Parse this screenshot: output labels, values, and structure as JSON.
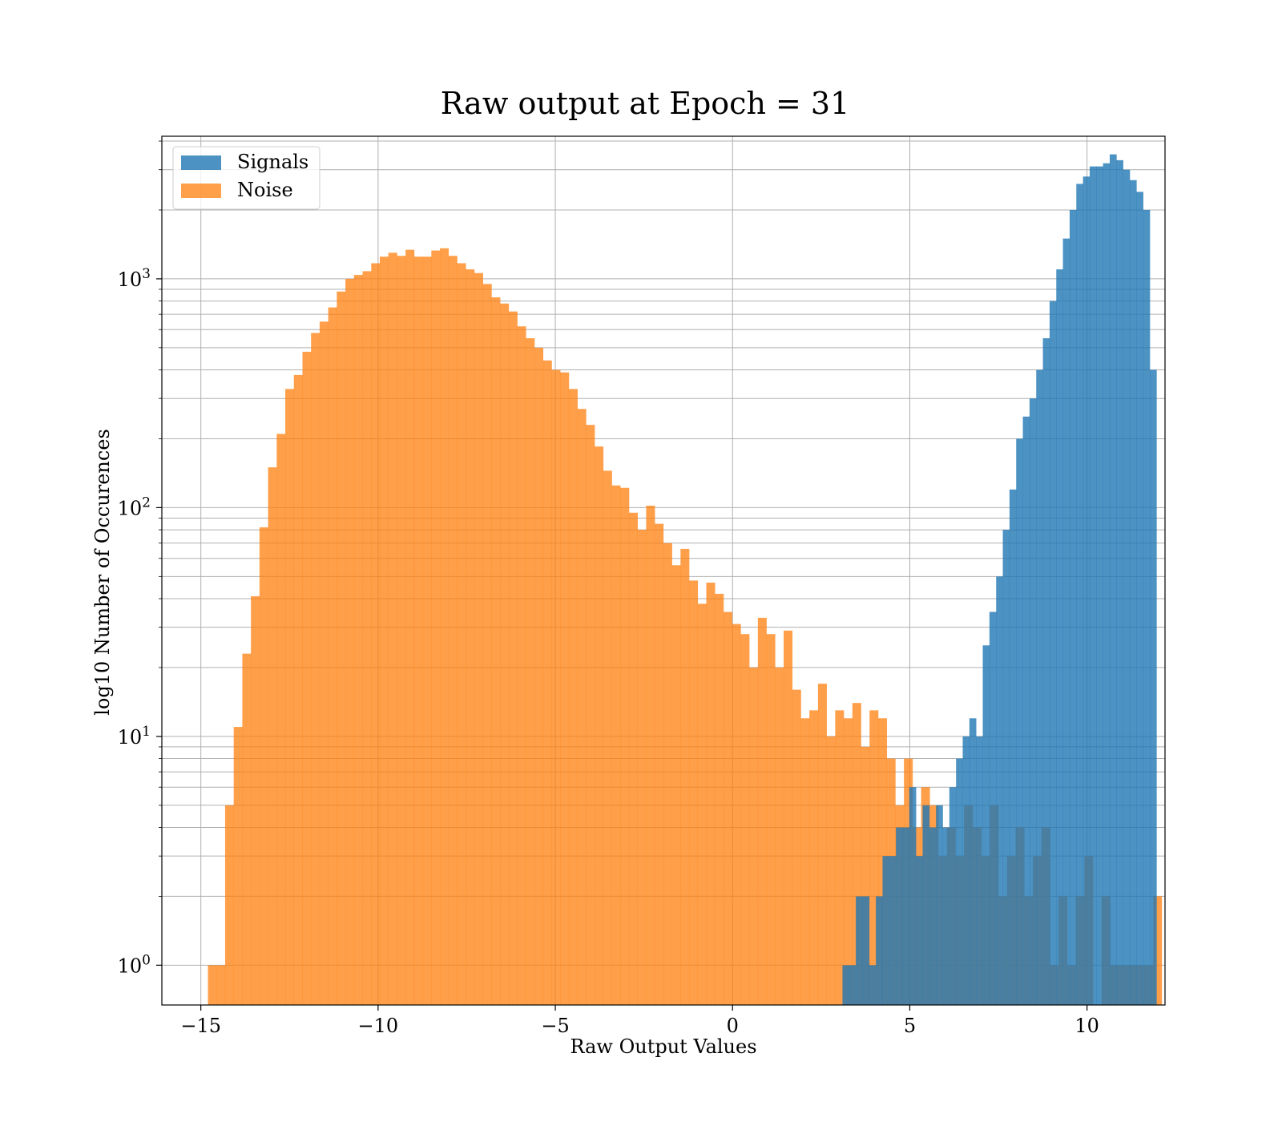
{
  "chart_data": {
    "type": "bar",
    "title": "Raw output at Epoch = 31",
    "xlabel": "Raw Output Values",
    "ylabel": "log10 Number of Occurences",
    "yscale": "log",
    "xlim": [
      -16.1,
      12.2
    ],
    "ylim": [
      0.67,
      4200
    ],
    "grid": true,
    "legend_position": "top-left",
    "x_ticks": [
      {
        "value": -15,
        "label": "−15"
      },
      {
        "value": -10,
        "label": "−10"
      },
      {
        "value": -5,
        "label": "−5"
      },
      {
        "value": 0,
        "label": "0"
      },
      {
        "value": 5,
        "label": "5"
      },
      {
        "value": 10,
        "label": "10"
      }
    ],
    "y_ticks": [
      {
        "value": 1,
        "base": "10",
        "exp": "0"
      },
      {
        "value": 10,
        "base": "10",
        "exp": "1"
      },
      {
        "value": 100,
        "base": "10",
        "exp": "2"
      },
      {
        "value": 1000,
        "base": "10",
        "exp": "3"
      }
    ],
    "series": [
      {
        "name": "Noise",
        "color": "#ff7f0e",
        "opacity": 0.75,
        "bin_start": -14.8,
        "bin_width": 0.2424,
        "counts": [
          1,
          1,
          5,
          11,
          23,
          41,
          82,
          150,
          210,
          330,
          380,
          480,
          580,
          650,
          750,
          880,
          1000,
          1040,
          1080,
          1170,
          1250,
          1300,
          1260,
          1340,
          1250,
          1250,
          1330,
          1360,
          1260,
          1170,
          1100,
          1060,
          950,
          830,
          780,
          720,
          620,
          550,
          500,
          440,
          400,
          390,
          330,
          270,
          230,
          185,
          145,
          125,
          122,
          95,
          80,
          102,
          85,
          70,
          56,
          66,
          48,
          38,
          47,
          42,
          35,
          31,
          28,
          20,
          33,
          28,
          20,
          29,
          16,
          12,
          13,
          17,
          10,
          13,
          12,
          14,
          9,
          13,
          12,
          8,
          5,
          8,
          4,
          6,
          5,
          3,
          4,
          3,
          5,
          4,
          3,
          5,
          2,
          3,
          4,
          2,
          3,
          4,
          1,
          2,
          1,
          2,
          3,
          0,
          2,
          1,
          1,
          1,
          1,
          1,
          2,
          0
        ]
      },
      {
        "name": "Signals",
        "color": "#1f77b4",
        "opacity": 0.8,
        "bin_start": 3.1,
        "bin_width": 0.1885,
        "counts": [
          1,
          1,
          2,
          2,
          1,
          2,
          3,
          3,
          4,
          4,
          6,
          3,
          5,
          4,
          5,
          4,
          6,
          8,
          10,
          12,
          10,
          25,
          35,
          50,
          80,
          120,
          200,
          250,
          300,
          400,
          550,
          800,
          1100,
          1500,
          2000,
          2600,
          2800,
          3100,
          3100,
          3200,
          3500,
          3300,
          3000,
          2700,
          2400,
          2000,
          400
        ]
      }
    ]
  }
}
